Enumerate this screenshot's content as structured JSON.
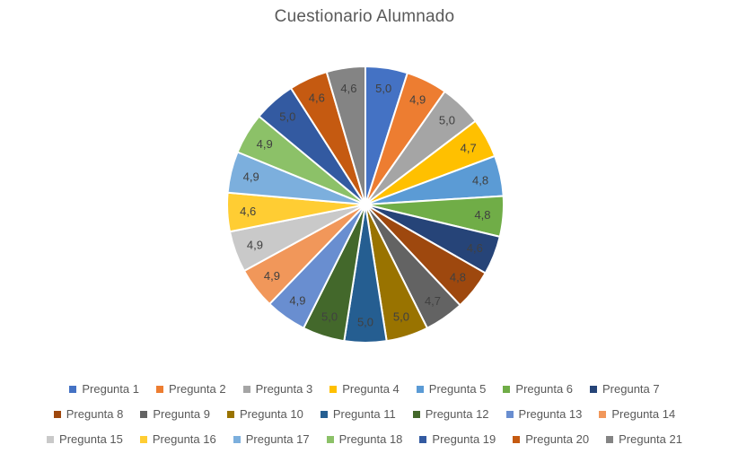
{
  "chart_data": {
    "type": "pie",
    "title": "Cuestionario Alumnado",
    "labels": [
      "Pregunta 1",
      "Pregunta 2",
      "Pregunta 3",
      "Pregunta 4",
      "Pregunta 5",
      "Pregunta 6",
      "Pregunta 7",
      "Pregunta 8",
      "Pregunta 9",
      "Pregunta 10",
      "Pregunta 11",
      "Pregunta 12",
      "Pregunta 13",
      "Pregunta 14",
      "Pregunta 15",
      "Pregunta 16",
      "Pregunta 17",
      "Pregunta 18",
      "Pregunta 19",
      "Pregunta 20",
      "Pregunta 21"
    ],
    "values": [
      5.0,
      4.9,
      5.0,
      4.7,
      4.8,
      4.8,
      4.6,
      4.8,
      4.7,
      5.0,
      5.0,
      5.0,
      4.9,
      4.9,
      4.9,
      4.6,
      4.9,
      4.9,
      5.0,
      4.6,
      4.6
    ],
    "value_labels": [
      "5,0",
      "4,9",
      "5,0",
      "4,7",
      "4,8",
      "4,8",
      "4,6",
      "4,8",
      "4,7",
      "5,0",
      "5,0",
      "5,0",
      "4,9",
      "4,9",
      "4,9",
      "4,6",
      "4,9",
      "4,9",
      "5,0",
      "4,6",
      "4,6"
    ],
    "colors": [
      "#4472C4",
      "#ED7D31",
      "#A5A5A5",
      "#FFC000",
      "#5B9BD5",
      "#70AD47",
      "#264478",
      "#9E480E",
      "#636363",
      "#997300",
      "#255E91",
      "#43682B",
      "#698ED0",
      "#F1975A",
      "#C9C9C9",
      "#FFCD33",
      "#7CAFDD",
      "#8CC168",
      "#335AA1",
      "#C55A11",
      "#848484"
    ],
    "start_angle_deg": 0,
    "direction": "clockwise",
    "legend_position": "bottom",
    "legend_items_per_row": 7,
    "styles": {
      "title_color": "#595959",
      "data_label_color": "#404040",
      "legend_text_color": "#595959",
      "slice_border_color": "#FFFFFF",
      "background": "#FFFFFF"
    }
  }
}
